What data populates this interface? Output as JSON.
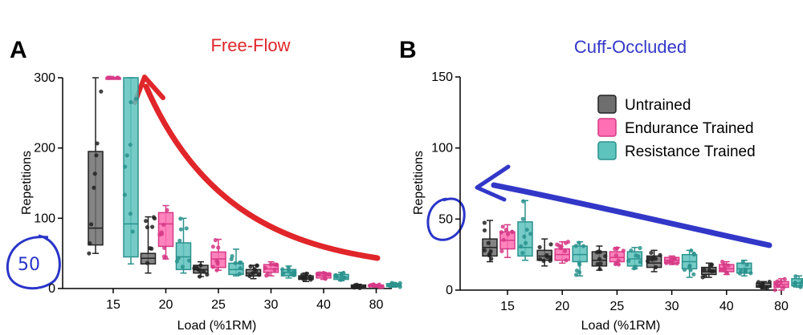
{
  "colors": {
    "untrained": "#6e6e6e",
    "endurance": "#ff6fb3",
    "resistance": "#5ec2bd",
    "title_a": "#e0262a",
    "title_b": "#3237c8",
    "annotation": "#2a35c9"
  },
  "legend": [
    "Untrained",
    "Endurance Trained",
    "Resistance Trained"
  ],
  "annotations": {
    "left_circle_text": "50",
    "right_circle_text": "50"
  },
  "chart_data": [
    {
      "panel": "A",
      "type": "box",
      "title": "Free-Flow",
      "xlabel": "Load (%1RM)",
      "ylabel": "Repetitions",
      "ylim": [
        0,
        300
      ],
      "yticks": [
        0,
        100,
        200,
        300
      ],
      "categories": [
        "15",
        "20",
        "25",
        "30",
        "40",
        "80"
      ],
      "series": [
        {
          "name": "Untrained",
          "boxes": [
            {
              "min": 50,
              "q1": 62,
              "median": 86,
              "q3": 195,
              "max": 300
            },
            {
              "min": 22,
              "q1": 35,
              "median": 43,
              "q3": 50,
              "max": 102
            },
            {
              "min": 17,
              "q1": 22,
              "median": 27,
              "q3": 33,
              "max": 38
            },
            {
              "min": 14,
              "q1": 18,
              "median": 22,
              "q3": 27,
              "max": 33
            },
            {
              "min": 10,
              "q1": 13,
              "median": 15,
              "q3": 18,
              "max": 22
            },
            {
              "min": 0,
              "q1": 2,
              "median": 3,
              "q3": 5,
              "max": 6
            }
          ]
        },
        {
          "name": "Endurance Trained",
          "boxes": [
            {
              "min": 300,
              "q1": 300,
              "median": 300,
              "q3": 300,
              "max": 300
            },
            {
              "min": 42,
              "q1": 60,
              "median": 92,
              "q3": 108,
              "max": 118
            },
            {
              "min": 26,
              "q1": 30,
              "median": 42,
              "q3": 52,
              "max": 70
            },
            {
              "min": 18,
              "q1": 23,
              "median": 28,
              "q3": 34,
              "max": 38
            },
            {
              "min": 13,
              "q1": 15,
              "median": 18,
              "q3": 21,
              "max": 23
            },
            {
              "min": 2,
              "q1": 3,
              "median": 4,
              "q3": 5,
              "max": 6
            }
          ]
        },
        {
          "name": "Resistance Trained",
          "boxes": [
            {
              "min": 35,
              "q1": 45,
              "median": 92,
              "q3": 300,
              "max": 300
            },
            {
              "min": 22,
              "q1": 27,
              "median": 45,
              "q3": 65,
              "max": 100
            },
            {
              "min": 18,
              "q1": 20,
              "median": 27,
              "q3": 36,
              "max": 56
            },
            {
              "min": 15,
              "q1": 18,
              "median": 23,
              "q3": 27,
              "max": 32
            },
            {
              "min": 11,
              "q1": 13,
              "median": 16,
              "q3": 20,
              "max": 23
            },
            {
              "min": 2,
              "q1": 3,
              "median": 5,
              "q3": 7,
              "max": 8
            }
          ]
        }
      ]
    },
    {
      "panel": "B",
      "type": "box",
      "title": "Cuff-Occluded",
      "xlabel": "Load (%1RM)",
      "ylabel": "Repetitions",
      "ylim": [
        0,
        150
      ],
      "yticks": [
        0,
        50,
        100,
        150
      ],
      "categories": [
        "15",
        "20",
        "25",
        "30",
        "40",
        "80"
      ],
      "series": [
        {
          "name": "Untrained",
          "boxes": [
            {
              "min": 20,
              "q1": 24,
              "median": 30,
              "q3": 36,
              "max": 49
            },
            {
              "min": 17,
              "q1": 21,
              "median": 24,
              "q3": 28,
              "max": 36
            },
            {
              "min": 14,
              "q1": 17,
              "median": 21,
              "q3": 27,
              "max": 31
            },
            {
              "min": 13,
              "q1": 16,
              "median": 19,
              "q3": 24,
              "max": 28
            },
            {
              "min": 9,
              "q1": 11,
              "median": 13,
              "q3": 16,
              "max": 19
            },
            {
              "min": 1,
              "q1": 2,
              "median": 3,
              "q3": 5,
              "max": 6
            }
          ]
        },
        {
          "name": "Endurance Trained",
          "boxes": [
            {
              "min": 23,
              "q1": 29,
              "median": 35,
              "q3": 41,
              "max": 46
            },
            {
              "min": 19,
              "q1": 21,
              "median": 25,
              "q3": 29,
              "max": 34
            },
            {
              "min": 18,
              "q1": 20,
              "median": 23,
              "q3": 27,
              "max": 30
            },
            {
              "min": 18,
              "q1": 19,
              "median": 21,
              "q3": 23,
              "max": 24
            },
            {
              "min": 11,
              "q1": 13,
              "median": 15,
              "q3": 18,
              "max": 20
            },
            {
              "min": 0,
              "q1": 2,
              "median": 4,
              "q3": 6,
              "max": 8
            }
          ]
        },
        {
          "name": "Resistance Trained",
          "boxes": [
            {
              "min": 21,
              "q1": 24,
              "median": 30,
              "q3": 48,
              "max": 63
            },
            {
              "min": 10,
              "q1": 20,
              "median": 25,
              "q3": 31,
              "max": 34
            },
            {
              "min": 15,
              "q1": 17,
              "median": 22,
              "q3": 27,
              "max": 30
            },
            {
              "min": 9,
              "q1": 15,
              "median": 20,
              "q3": 25,
              "max": 28
            },
            {
              "min": 10,
              "q1": 12,
              "median": 15,
              "q3": 19,
              "max": 21
            },
            {
              "min": 2,
              "q1": 3,
              "median": 5,
              "q3": 8,
              "max": 10
            }
          ]
        }
      ]
    }
  ]
}
